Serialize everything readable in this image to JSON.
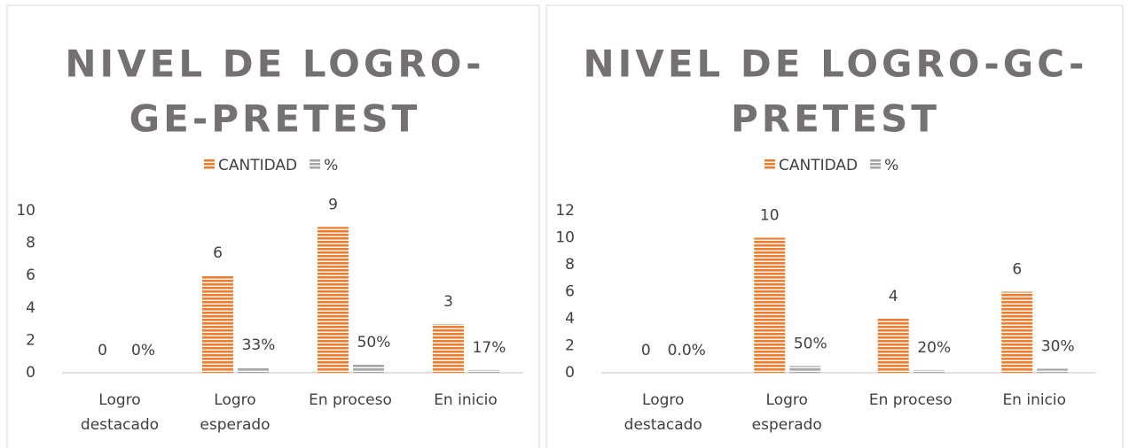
{
  "chart_data": [
    {
      "type": "bar",
      "title": [
        "NIVEL DE LOGRO-",
        "GE-PRETEST"
      ],
      "categories": [
        "Logro destacado",
        "Logro esperado",
        "En proceso",
        "En inicio"
      ],
      "series": [
        {
          "name": "CANTIDAD",
          "color": "#ed7d31",
          "values": [
            0,
            6,
            9,
            3
          ]
        },
        {
          "name": "%",
          "color": "#a5a5a5",
          "values": [
            0,
            0.33,
            0.5,
            0.17
          ],
          "value_labels": [
            "0%",
            "33%",
            "50%",
            "17%"
          ]
        }
      ],
      "ylim": [
        0,
        10
      ],
      "yticks": [
        0,
        2,
        4,
        6,
        8,
        10
      ],
      "legend": "top"
    },
    {
      "type": "bar",
      "title": [
        "NIVEL DE LOGRO-GC-",
        "PRETEST"
      ],
      "categories": [
        "Logro destacado",
        "Logro esperado",
        "En proceso",
        "En inicio"
      ],
      "series": [
        {
          "name": "CANTIDAD",
          "color": "#ed7d31",
          "values": [
            0,
            10,
            4,
            6
          ]
        },
        {
          "name": "%",
          "color": "#a5a5a5",
          "values": [
            0,
            0.5,
            0.2,
            0.3
          ],
          "value_labels": [
            "0.0%",
            "50%",
            "20%",
            "30%"
          ]
        }
      ],
      "ylim": [
        0,
        12
      ],
      "yticks": [
        0,
        2,
        4,
        6,
        8,
        10,
        12
      ],
      "legend": "top"
    }
  ]
}
